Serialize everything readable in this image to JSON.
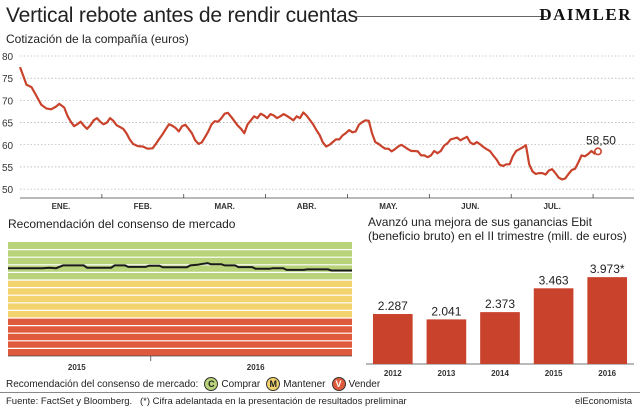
{
  "header": {
    "title": "Vertical rebote antes de rendir cuentas",
    "brand": "DAIMLER",
    "subtitle": "Cotización de la compañía (euros)"
  },
  "colors": {
    "line": "#c9432c",
    "bar": "#c9432c",
    "grid": "#9a9a9a",
    "buy": "#b9d37a",
    "hold": "#f3d36e",
    "sell": "#df5a3c",
    "consensus_line": "#1a1a1a"
  },
  "chart_data": [
    {
      "type": "line",
      "title": "Cotización de la compañía (euros)",
      "ylim": [
        48,
        80
      ],
      "yticks": [
        50,
        55,
        60,
        65,
        70,
        75,
        80
      ],
      "xlim": [
        0,
        7.5
      ],
      "month_labels": [
        {
          "label": "ENE.",
          "x": 0.5
        },
        {
          "label": "FEB.",
          "x": 1.5
        },
        {
          "label": "MAR.",
          "x": 2.5
        },
        {
          "label": "ABR.",
          "x": 3.5
        },
        {
          "label": "MAY.",
          "x": 4.5
        },
        {
          "label": "JUN.",
          "x": 5.5
        },
        {
          "label": "JUL.",
          "x": 6.5
        }
      ],
      "series": [
        {
          "name": "Daimler",
          "points": [
            [
              0.0,
              77.5
            ],
            [
              0.04,
              75.5
            ],
            [
              0.08,
              73.5
            ],
            [
              0.14,
              73.0
            ],
            [
              0.2,
              71.0
            ],
            [
              0.26,
              69.0
            ],
            [
              0.32,
              68.2
            ],
            [
              0.38,
              68.0
            ],
            [
              0.44,
              68.6
            ],
            [
              0.48,
              69.2
            ],
            [
              0.54,
              68.4
            ],
            [
              0.58,
              66.5
            ],
            [
              0.62,
              65.2
            ],
            [
              0.66,
              64.2
            ],
            [
              0.7,
              64.6
            ],
            [
              0.74,
              65.2
            ],
            [
              0.78,
              64.3
            ],
            [
              0.82,
              63.6
            ],
            [
              0.86,
              64.4
            ],
            [
              0.9,
              65.5
            ],
            [
              0.94,
              66.0
            ],
            [
              0.98,
              65.2
            ],
            [
              1.02,
              64.6
            ],
            [
              1.06,
              65.0
            ],
            [
              1.1,
              66.0
            ],
            [
              1.14,
              65.4
            ],
            [
              1.18,
              64.4
            ],
            [
              1.22,
              64.0
            ],
            [
              1.26,
              63.6
            ],
            [
              1.3,
              62.6
            ],
            [
              1.34,
              61.2
            ],
            [
              1.38,
              60.2
            ],
            [
              1.44,
              59.7
            ],
            [
              1.5,
              59.6
            ],
            [
              1.56,
              59.1
            ],
            [
              1.62,
              59.2
            ],
            [
              1.66,
              60.2
            ],
            [
              1.7,
              61.3
            ],
            [
              1.74,
              62.3
            ],
            [
              1.78,
              63.5
            ],
            [
              1.82,
              64.6
            ],
            [
              1.86,
              64.3
            ],
            [
              1.9,
              63.8
            ],
            [
              1.94,
              63.0
            ],
            [
              1.98,
              64.2
            ],
            [
              2.02,
              64.5
            ],
            [
              2.06,
              63.6
            ],
            [
              2.1,
              62.6
            ],
            [
              2.14,
              61.0
            ],
            [
              2.18,
              60.2
            ],
            [
              2.22,
              60.5
            ],
            [
              2.26,
              61.7
            ],
            [
              2.3,
              63.0
            ],
            [
              2.34,
              64.6
            ],
            [
              2.38,
              65.3
            ],
            [
              2.42,
              65.2
            ],
            [
              2.46,
              66.0
            ],
            [
              2.5,
              67.0
            ],
            [
              2.54,
              67.2
            ],
            [
              2.58,
              66.3
            ],
            [
              2.62,
              65.3
            ],
            [
              2.66,
              64.3
            ],
            [
              2.7,
              63.6
            ],
            [
              2.74,
              62.6
            ],
            [
              2.78,
              64.6
            ],
            [
              2.82,
              65.5
            ],
            [
              2.86,
              66.4
            ],
            [
              2.9,
              66.0
            ],
            [
              2.94,
              67.0
            ],
            [
              2.98,
              66.6
            ],
            [
              3.02,
              66.0
            ],
            [
              3.06,
              66.9
            ],
            [
              3.1,
              66.6
            ],
            [
              3.14,
              66.0
            ],
            [
              3.18,
              66.4
            ],
            [
              3.22,
              66.9
            ],
            [
              3.26,
              66.5
            ],
            [
              3.3,
              66.0
            ],
            [
              3.34,
              65.5
            ],
            [
              3.38,
              66.4
            ],
            [
              3.42,
              66.0
            ],
            [
              3.46,
              67.3
            ],
            [
              3.5,
              66.6
            ],
            [
              3.54,
              65.6
            ],
            [
              3.58,
              64.6
            ],
            [
              3.62,
              63.3
            ],
            [
              3.66,
              62.2
            ],
            [
              3.7,
              60.5
            ],
            [
              3.74,
              59.6
            ],
            [
              3.78,
              60.0
            ],
            [
              3.82,
              60.6
            ],
            [
              3.86,
              61.2
            ],
            [
              3.9,
              61.2
            ],
            [
              3.94,
              62.1
            ],
            [
              3.98,
              62.6
            ],
            [
              4.02,
              63.3
            ],
            [
              4.06,
              62.8
            ],
            [
              4.1,
              63.0
            ],
            [
              4.14,
              64.5
            ],
            [
              4.18,
              65.1
            ],
            [
              4.22,
              65.5
            ],
            [
              4.26,
              65.4
            ],
            [
              4.3,
              62.6
            ],
            [
              4.34,
              60.6
            ],
            [
              4.38,
              60.2
            ],
            [
              4.42,
              59.6
            ],
            [
              4.46,
              59.1
            ],
            [
              4.5,
              59.1
            ],
            [
              4.54,
              58.5
            ],
            [
              4.58,
              59.0
            ],
            [
              4.62,
              59.6
            ],
            [
              4.66,
              60.0
            ],
            [
              4.7,
              59.5
            ],
            [
              4.74,
              59.0
            ],
            [
              4.78,
              58.6
            ],
            [
              4.82,
              58.6
            ],
            [
              4.86,
              58.5
            ],
            [
              4.9,
              57.6
            ],
            [
              4.94,
              57.6
            ],
            [
              4.98,
              57.2
            ],
            [
              5.02,
              57.6
            ],
            [
              5.06,
              58.6
            ],
            [
              5.1,
              58.1
            ],
            [
              5.14,
              58.6
            ],
            [
              5.18,
              59.8
            ],
            [
              5.22,
              60.3
            ],
            [
              5.26,
              61.2
            ],
            [
              5.3,
              61.4
            ],
            [
              5.34,
              61.6
            ],
            [
              5.38,
              61.0
            ],
            [
              5.42,
              61.4
            ],
            [
              5.46,
              61.8
            ],
            [
              5.5,
              60.5
            ],
            [
              5.54,
              60.1
            ],
            [
              5.58,
              60.6
            ],
            [
              5.62,
              60.1
            ],
            [
              5.66,
              59.5
            ],
            [
              5.7,
              59.0
            ],
            [
              5.74,
              58.6
            ],
            [
              5.78,
              57.6
            ],
            [
              5.82,
              56.7
            ],
            [
              5.86,
              55.5
            ],
            [
              5.9,
              55.2
            ],
            [
              5.94,
              55.6
            ],
            [
              5.98,
              55.6
            ],
            [
              6.02,
              57.4
            ],
            [
              6.06,
              58.6
            ],
            [
              6.1,
              59.0
            ],
            [
              6.14,
              59.4
            ],
            [
              6.18,
              59.9
            ],
            [
              6.22,
              55.6
            ],
            [
              6.26,
              54.0
            ],
            [
              6.3,
              53.4
            ],
            [
              6.34,
              53.6
            ],
            [
              6.38,
              53.6
            ],
            [
              6.42,
              53.3
            ],
            [
              6.46,
              54.2
            ],
            [
              6.5,
              54.5
            ],
            [
              6.54,
              53.6
            ],
            [
              6.58,
              52.6
            ],
            [
              6.62,
              52.2
            ],
            [
              6.66,
              52.4
            ],
            [
              6.7,
              53.4
            ],
            [
              6.74,
              54.3
            ],
            [
              6.78,
              54.6
            ],
            [
              6.82,
              56.0
            ],
            [
              6.86,
              57.6
            ],
            [
              6.9,
              57.4
            ],
            [
              6.94,
              57.9
            ],
            [
              6.98,
              58.6
            ],
            [
              7.02,
              58.0
            ],
            [
              7.06,
              58.5
            ]
          ]
        }
      ],
      "annotations": [
        {
          "label": "58,50",
          "x": 7.06,
          "y": 58.5
        }
      ]
    },
    {
      "type": "line",
      "title": "Recomendación del consenso de mercado",
      "xlabels": [
        {
          "label": "2015",
          "x": 0.2
        },
        {
          "label": "2016",
          "x": 0.72
        }
      ],
      "zones": [
        {
          "name": "Comprar",
          "from": 0.0,
          "to": 0.34
        },
        {
          "name": "Mantener",
          "from": 0.34,
          "to": 0.67
        },
        {
          "name": "Vender",
          "from": 0.67,
          "to": 1.0
        }
      ],
      "series": [
        {
          "name": "Consenso",
          "points": [
            [
              0.0,
              0.23
            ],
            [
              0.1,
              0.23
            ],
            [
              0.12,
              0.225
            ],
            [
              0.14,
              0.23
            ],
            [
              0.16,
              0.205
            ],
            [
              0.22,
              0.205
            ],
            [
              0.23,
              0.225
            ],
            [
              0.3,
              0.225
            ],
            [
              0.31,
              0.205
            ],
            [
              0.34,
              0.205
            ],
            [
              0.35,
              0.218
            ],
            [
              0.4,
              0.218
            ],
            [
              0.41,
              0.208
            ],
            [
              0.44,
              0.208
            ],
            [
              0.45,
              0.222
            ],
            [
              0.52,
              0.222
            ],
            [
              0.53,
              0.205
            ],
            [
              0.55,
              0.2
            ],
            [
              0.56,
              0.195
            ],
            [
              0.58,
              0.185
            ],
            [
              0.59,
              0.195
            ],
            [
              0.62,
              0.195
            ],
            [
              0.63,
              0.205
            ],
            [
              0.66,
              0.205
            ],
            [
              0.67,
              0.22
            ],
            [
              0.71,
              0.22
            ],
            [
              0.72,
              0.235
            ],
            [
              0.76,
              0.235
            ],
            [
              0.77,
              0.23
            ],
            [
              0.8,
              0.23
            ],
            [
              0.81,
              0.245
            ],
            [
              0.86,
              0.245
            ],
            [
              0.87,
              0.24
            ],
            [
              0.93,
              0.24
            ],
            [
              0.94,
              0.25
            ],
            [
              1.0,
              0.25
            ]
          ]
        }
      ]
    },
    {
      "type": "bar",
      "title": "Avanzó una mejora de sus ganancias Ebit (beneficio bruto) en el II trimestre (mill. de euros)",
      "categories": [
        "2012",
        "2013",
        "2014",
        "2015",
        "2016"
      ],
      "values": [
        2287,
        2041,
        2373,
        3463,
        3973
      ],
      "value_labels": [
        "2.287",
        "2.041",
        "2.373",
        "3.463",
        "3.973*"
      ],
      "ylim": [
        0,
        4300
      ]
    }
  ],
  "legend": {
    "label": "Recomendación del consenso de mercado:",
    "items": [
      {
        "letter": "C",
        "name": "Comprar"
      },
      {
        "letter": "M",
        "name": "Mantener"
      },
      {
        "letter": "V",
        "name": "Vender"
      }
    ]
  },
  "footer": {
    "source": "Fuente: FactSet y Bloomberg.",
    "note": "(*) Cifra adelantada en la presentación de resultados preliminar",
    "credit": "elEconomista"
  }
}
